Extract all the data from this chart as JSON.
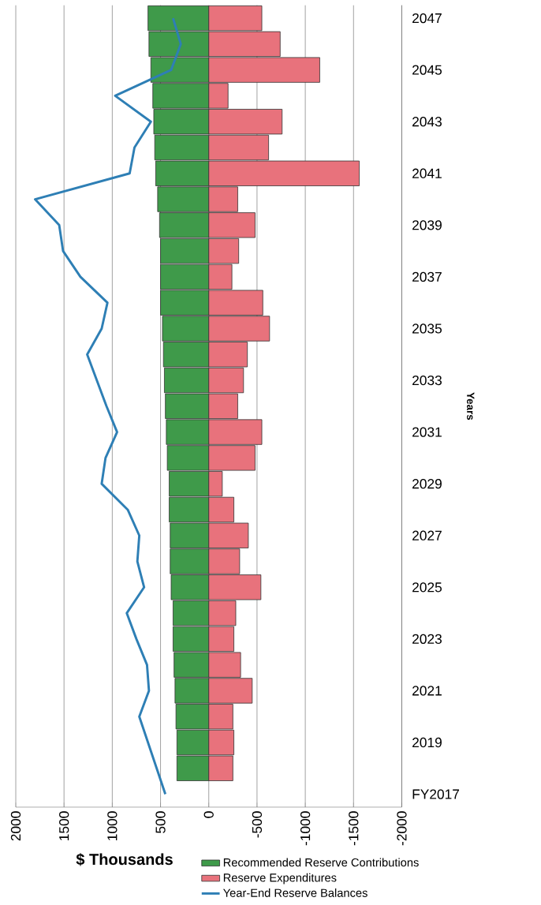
{
  "chart_data": {
    "type": "bar",
    "orientation": "horizontal",
    "xlabel": "$ Thousands",
    "ylabel": "Years",
    "categories": [
      "2047",
      null,
      "2045",
      null,
      "2043",
      null,
      "2041",
      null,
      "2039",
      null,
      "2037",
      null,
      "2035",
      null,
      "2033",
      null,
      "2031",
      null,
      "2029",
      null,
      "2027",
      null,
      "2025",
      null,
      "2023",
      null,
      "2021",
      null,
      "2019",
      null,
      "FY2017"
    ],
    "series": [
      {
        "name": "Recommended Reserve Contributions",
        "color": "#3f9a4a",
        "values": [
          630,
          620,
          600,
          580,
          570,
          560,
          550,
          530,
          510,
          500,
          500,
          500,
          480,
          470,
          460,
          450,
          440,
          430,
          410,
          410,
          400,
          400,
          390,
          370,
          370,
          360,
          350,
          340,
          330,
          330,
          0
        ]
      },
      {
        "name": "Reserve Expenditures",
        "color": "#e8727c",
        "values": [
          -550,
          -740,
          -1150,
          -200,
          -760,
          -620,
          -1560,
          -300,
          -480,
          -310,
          -240,
          -560,
          -630,
          -400,
          -360,
          -300,
          -550,
          -480,
          -140,
          -260,
          -410,
          -320,
          -540,
          -280,
          -260,
          -330,
          -450,
          -250,
          -260,
          -250,
          0
        ]
      },
      {
        "name": "Year-End Reserve Balances",
        "type": "line",
        "color": "#2e7fb5",
        "values": [
          370,
          290,
          390,
          970,
          600,
          770,
          820,
          1800,
          1550,
          1510,
          1330,
          1050,
          1110,
          1260,
          1160,
          1060,
          950,
          1070,
          1110,
          840,
          720,
          740,
          670,
          850,
          750,
          640,
          620,
          720,
          630,
          540,
          450
        ]
      }
    ],
    "stacked": true,
    "xlim": [
      2000,
      -2000
    ],
    "xticks": [
      2000,
      1500,
      1000,
      500,
      0,
      -500,
      -1000,
      -1500,
      -2000
    ],
    "grid": "x",
    "legend": "bottom right"
  }
}
